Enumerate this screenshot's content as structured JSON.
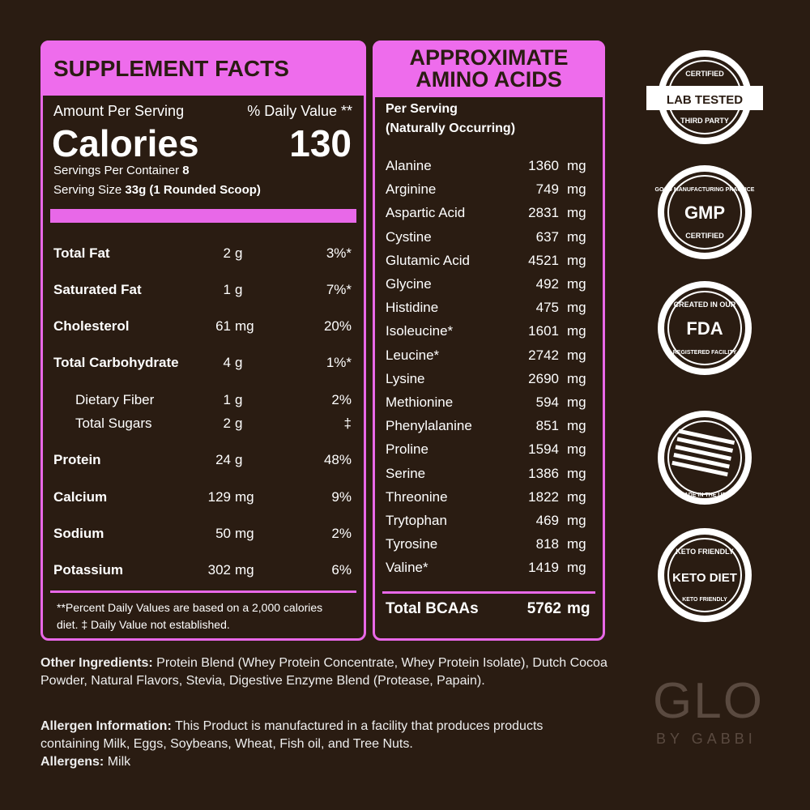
{
  "supplement_facts": {
    "title": "SUPPLEMENT FACTS",
    "amount_per_serving": "Amount Per Serving",
    "daily_value_header": "% Daily Value **",
    "calories_label": "Calories",
    "calories": "130",
    "servings_label": "Servings Per Container",
    "servings": "8",
    "serving_size_label": "Serving Size",
    "serving_size": "33g (1 Rounded Scoop)",
    "rows": [
      {
        "name": "Total Fat",
        "amount": "2",
        "unit": "g",
        "dv": "3%*"
      },
      {
        "name": "Saturated Fat",
        "amount": "1",
        "unit": "g",
        "dv": "7%*"
      },
      {
        "name": "Cholesterol",
        "amount": "61",
        "unit": "mg",
        "dv": "20%"
      },
      {
        "name": "Total Carbohydrate",
        "amount": "4",
        "unit": "g",
        "dv": "1%*",
        "subrows": [
          {
            "name": "Dietary Fiber",
            "amount": "1",
            "unit": "g",
            "dv": "2%"
          },
          {
            "name": "Total Sugars",
            "amount": "2",
            "unit": "g",
            "dv": "‡"
          }
        ]
      },
      {
        "name": "Protein",
        "amount": "24",
        "unit": "g",
        "dv": "48%"
      },
      {
        "name": "Calcium",
        "amount": "129",
        "unit": "mg",
        "dv": "9%"
      },
      {
        "name": "Sodium",
        "amount": "50",
        "unit": "mg",
        "dv": "2%"
      },
      {
        "name": "Potassium",
        "amount": "302",
        "unit": "mg",
        "dv": "6%"
      }
    ],
    "footnote": "**Percent Daily Values are based on a 2,000 calories diet. ‡ Daily Value not established."
  },
  "amino_acids": {
    "title_lines": [
      "APPROXIMATE",
      "AMINO ACIDS"
    ],
    "per_serving": "Per Serving",
    "note": "(Naturally Occurring)",
    "rows": [
      {
        "name": "Alanine",
        "amount": "1360",
        "unit": "mg"
      },
      {
        "name": "Arginine",
        "amount": "749",
        "unit": "mg"
      },
      {
        "name": "Aspartic Acid",
        "amount": "2831",
        "unit": "mg"
      },
      {
        "name": "Cystine",
        "amount": "637",
        "unit": "mg"
      },
      {
        "name": "Glutamic Acid",
        "amount": "4521",
        "unit": "mg"
      },
      {
        "name": "Glycine",
        "amount": "492",
        "unit": "mg"
      },
      {
        "name": "Histidine",
        "amount": "475",
        "unit": "mg"
      },
      {
        "name": "Isoleucine*",
        "amount": "1601",
        "unit": "mg"
      },
      {
        "name": "Leucine*",
        "amount": "2742",
        "unit": "mg"
      },
      {
        "name": "Lysine",
        "amount": "2690",
        "unit": "mg"
      },
      {
        "name": "Methionine",
        "amount": "594",
        "unit": "mg"
      },
      {
        "name": "Phenylalanine",
        "amount": "851",
        "unit": "mg"
      },
      {
        "name": "Proline",
        "amount": "1594",
        "unit": "mg"
      },
      {
        "name": "Serine",
        "amount": "1386",
        "unit": "mg"
      },
      {
        "name": "Threonine",
        "amount": "1822",
        "unit": "mg"
      },
      {
        "name": "Trytophan",
        "amount": "469",
        "unit": "mg"
      },
      {
        "name": "Tyrosine",
        "amount": "818",
        "unit": "mg"
      },
      {
        "name": "Valine*",
        "amount": "1419",
        "unit": "mg"
      }
    ],
    "total": {
      "name": "Total BCAAs",
      "amount": "5762",
      "unit": "mg"
    }
  },
  "ingredients": {
    "other_label": "Other Ingredients:",
    "other_text": "Protein Blend (Whey Protein Concentrate, Whey Protein Isolate), Dutch Cocoa Powder, Natural Flavors, Stevia, Digestive Enzyme Blend (Protease, Papain).",
    "allergen_info_label": "Allergen Information:",
    "allergen_info_text": "This Product is manufactured in a facility that produces products containing Milk, Eggs, Soybeans, Wheat, Fish oil, and Tree Nuts.",
    "allergens_label": "Allergens:",
    "allergens_text": "Milk"
  },
  "badges": [
    {
      "top": "CERTIFIED",
      "main": "LAB TESTED",
      "bottom": "THIRD PARTY"
    },
    {
      "top": "GOOD MANUFACTURING PRACTICE",
      "main": "GMP",
      "bottom": "CERTIFIED"
    },
    {
      "top": "CREATED IN OUR",
      "main": "FDA",
      "bottom": "REGISTERED FACILITY"
    },
    {
      "top": "",
      "main": "",
      "bottom": "MADE IN THE USA"
    },
    {
      "top": "KETO FRIENDLY",
      "main": "KETO DIET",
      "bottom": "KETO FRIENDLY"
    }
  ],
  "logo": {
    "name": "GLO",
    "tagline": "BY GABBI"
  }
}
